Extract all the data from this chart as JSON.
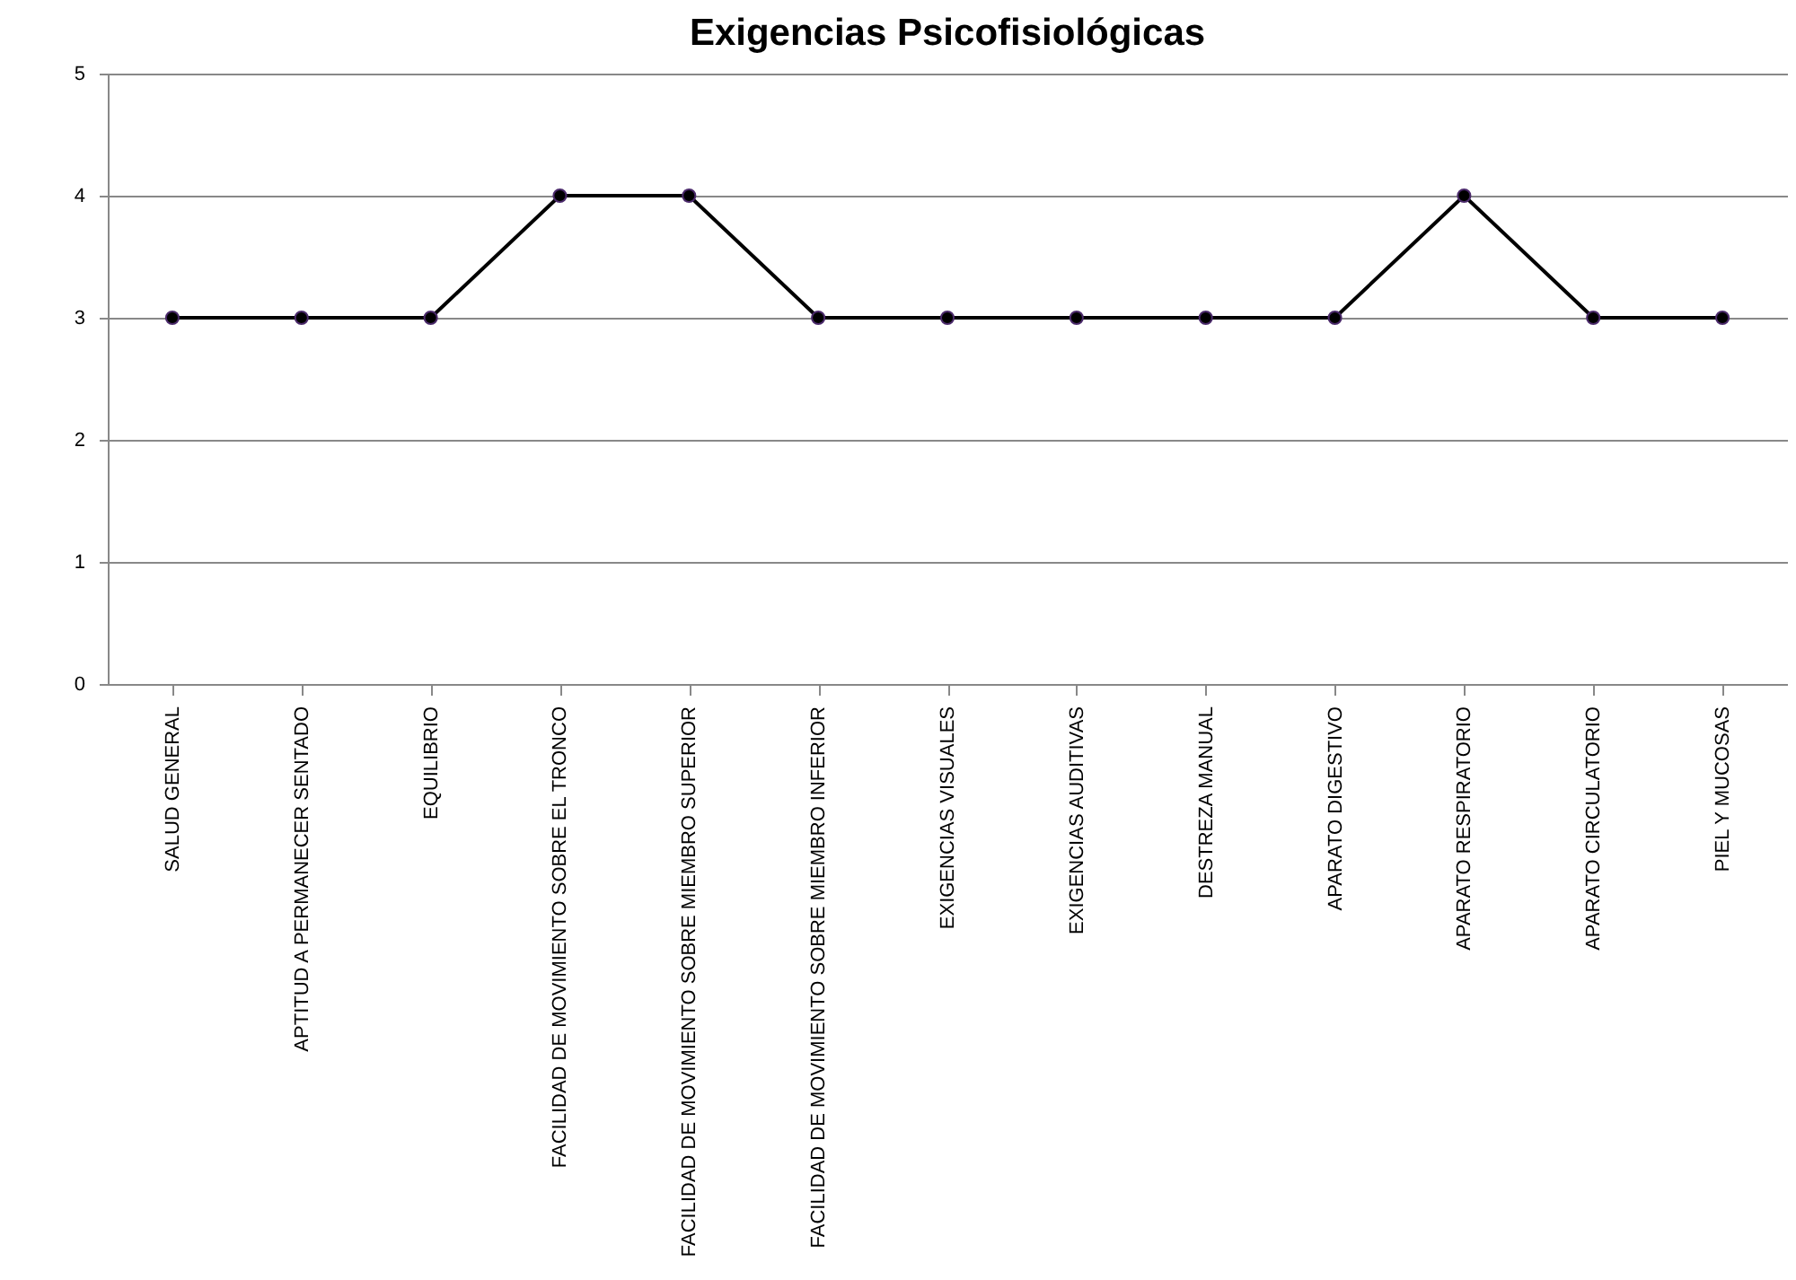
{
  "chart_data": {
    "type": "line",
    "title": "Exigencias Psicofisiológicas",
    "categories": [
      "SALUD GENERAL",
      "APTITUD A PERMANECER SENTADO",
      "EQUILIBRIO",
      "FACILIDAD DE MOVIMIENTO SOBRE EL TRONCO",
      "FACILIDAD DE MOVIMIENTO SOBRE MIEMBRO SUPERIOR",
      "FACILIDAD DE MOVIMIENTO SOBRE MIEMBRO INFERIOR",
      "EXIGENCIAS VISUALES",
      "EXIGENCIAS AUDITIVAS",
      "DESTREZA MANUAL",
      "APARATO DIGESTIVO",
      "APARATO RESPIRATORIO",
      "APARATO CIRCULATORIO",
      "PIEL Y MUCOSAS"
    ],
    "series": [
      {
        "color": "#000000",
        "values": [
          3,
          3,
          3,
          4,
          4,
          3,
          3,
          3,
          3,
          3,
          4,
          3,
          3
        ]
      }
    ],
    "ylim": [
      0,
      5
    ],
    "yticks": [
      0,
      1,
      2,
      3,
      4,
      5
    ],
    "grid": "y",
    "marker": "circle",
    "line_style": "solid"
  }
}
